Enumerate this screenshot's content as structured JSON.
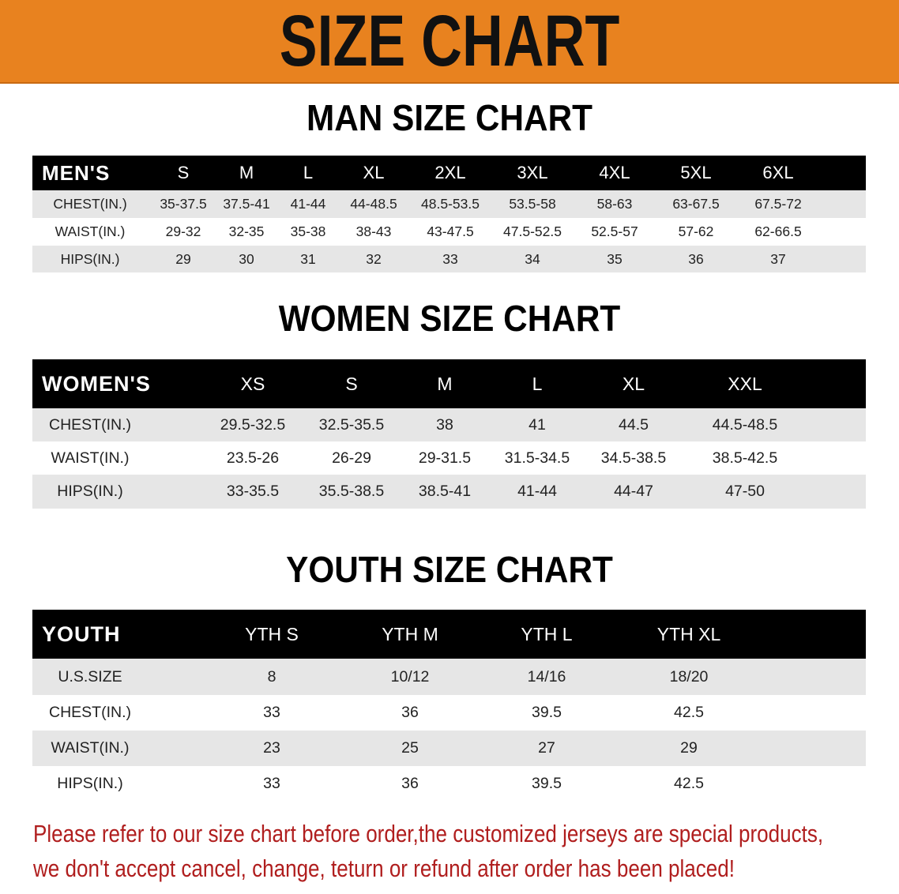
{
  "banner": {
    "title": "SIZE CHART",
    "color": "#e8821f"
  },
  "men": {
    "title": "MAN SIZE CHART",
    "header": [
      "MEN'S",
      "S",
      "M",
      "L",
      "XL",
      "2XL",
      "3XL",
      "4XL",
      "5XL",
      "6XL"
    ],
    "rows": [
      [
        "CHEST(IN.)",
        "35-37.5",
        "37.5-41",
        "41-44",
        "44-48.5",
        "48.5-53.5",
        "53.5-58",
        "58-63",
        "63-67.5",
        "67.5-72"
      ],
      [
        "WAIST(IN.)",
        "29-32",
        "32-35",
        "35-38",
        "38-43",
        "43-47.5",
        "47.5-52.5",
        "52.5-57",
        "57-62",
        "62-66.5"
      ],
      [
        "HIPS(IN.)",
        "29",
        "30",
        "31",
        "32",
        "33",
        "34",
        "35",
        "36",
        "37"
      ]
    ]
  },
  "women": {
    "title": "WOMEN SIZE CHART",
    "header": [
      "WOMEN'S",
      "XS",
      "S",
      "M",
      "L",
      "XL",
      "XXL"
    ],
    "rows": [
      [
        "CHEST(IN.)",
        "29.5-32.5",
        "32.5-35.5",
        "38",
        "41",
        "44.5",
        "44.5-48.5"
      ],
      [
        "WAIST(IN.)",
        "23.5-26",
        "26-29",
        "29-31.5",
        "31.5-34.5",
        "34.5-38.5",
        "38.5-42.5"
      ],
      [
        "HIPS(IN.)",
        "33-35.5",
        "35.5-38.5",
        "38.5-41",
        "41-44",
        "44-47",
        "47-50"
      ]
    ]
  },
  "youth": {
    "title": "YOUTH SIZE CHART",
    "header": [
      "YOUTH",
      "YTH S",
      "YTH M",
      "YTH L",
      "YTH XL"
    ],
    "rows": [
      [
        "U.S.SIZE",
        "8",
        "10/12",
        "14/16",
        "18/20"
      ],
      [
        "CHEST(IN.)",
        "33",
        "36",
        "39.5",
        "42.5"
      ],
      [
        "WAIST(IN.)",
        "23",
        "25",
        "27",
        "29"
      ],
      [
        "HIPS(IN.)",
        "33",
        "36",
        "39.5",
        "42.5"
      ]
    ]
  },
  "notice": {
    "line1": "Please refer to our size chart before order,the customized jerseys are special products,",
    "line2": "we don't accept cancel, change, teturn or refund after order has been placed!",
    "color": "#b01e1e"
  }
}
